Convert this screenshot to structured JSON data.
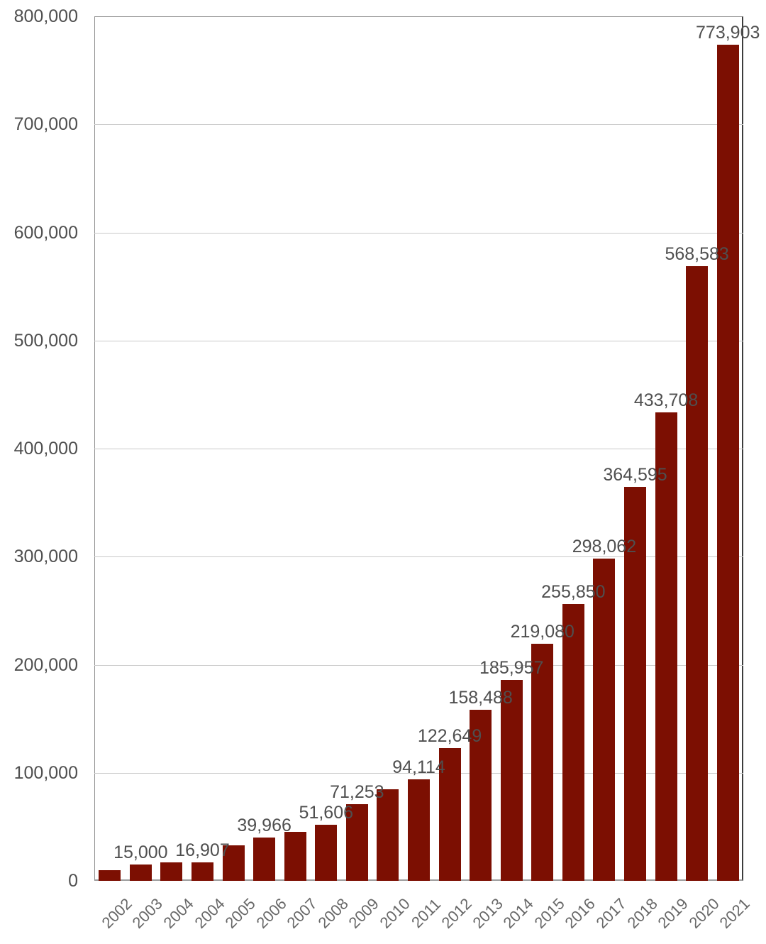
{
  "chart_data": {
    "type": "bar",
    "title": "",
    "xlabel": "",
    "ylabel": "",
    "categories": [
      "2002",
      "2003",
      "2004",
      "2004",
      "2005",
      "2006",
      "2007",
      "2008",
      "2009",
      "2010",
      "2011",
      "2012",
      "2013",
      "2014",
      "2015",
      "2016",
      "2017",
      "2018",
      "2019",
      "2020",
      "2021"
    ],
    "values": [
      10000,
      15000,
      17000,
      16907,
      33000,
      39966,
      45000,
      51606,
      71253,
      85000,
      94114,
      122649,
      158488,
      185957,
      219080,
      255850,
      298062,
      364595,
      433708,
      568583,
      773903
    ],
    "data_labels": [
      "",
      "15,000",
      "",
      "16,907",
      "",
      "39,966",
      "",
      "51,606",
      "71,253",
      "",
      "94,114",
      "122,649",
      "158,488",
      "185,957",
      "219,080",
      "255,850",
      "298,062",
      "364,595",
      "433,708",
      "568,583",
      "773,903"
    ],
    "ylim": [
      0,
      800000
    ],
    "y_tick_labels": [
      "0",
      "100,000",
      "200,000",
      "300,000",
      "400,000",
      "500,000",
      "600,000",
      "700,000",
      "800,000"
    ],
    "grid": true,
    "legend": "none",
    "colors": {
      "bar": "#7c0f02",
      "gridline": "#c9c9c9",
      "axis": "#8f8f8f",
      "axis_right": "#3d3d3d",
      "value_label_text": "#4f4f4f",
      "y_tick_text": "#4f4f4f",
      "x_tick_text": "#686868",
      "background": "#ffffff"
    }
  }
}
